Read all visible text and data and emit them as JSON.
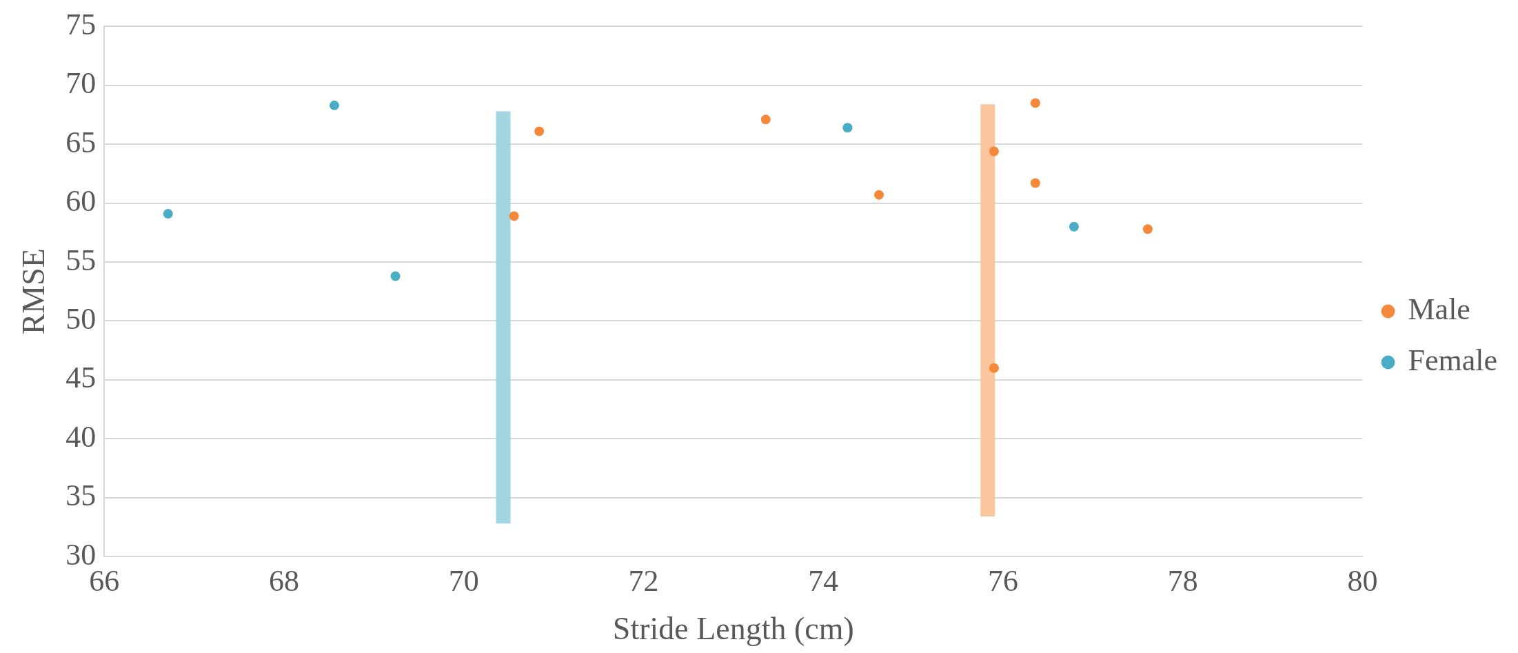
{
  "chart_data": {
    "type": "scatter",
    "xlabel": "Stride Length (cm)",
    "ylabel": "RMSE",
    "xlim": [
      66,
      80
    ],
    "xticks": [
      66,
      68,
      70,
      72,
      74,
      76,
      78,
      80
    ],
    "ylim": [
      30,
      75
    ],
    "yticks": [
      30,
      35,
      40,
      45,
      50,
      55,
      60,
      65,
      70,
      75
    ],
    "grid": "y",
    "legend": "right",
    "series": [
      {
        "name": "Male",
        "marker": "circle",
        "color": "#f4893a",
        "x": [
          70.84,
          70.56,
          73.36,
          74.62,
          75.9,
          76.36,
          76.36,
          75.9,
          77.61
        ],
        "values": [
          66.1,
          58.9,
          67.1,
          60.7,
          64.4,
          68.5,
          61.7,
          46.0,
          57.8
        ]
      },
      {
        "name": "Female",
        "marker": "circle",
        "color": "#4bacc6",
        "x": [
          66.71,
          68.56,
          69.24,
          74.27,
          76.79
        ],
        "values": [
          59.1,
          68.3,
          53.8,
          66.4,
          58.0
        ]
      },
      {
        "type": "line",
        "marker": "none",
        "color": "#a3d6e3",
        "x": [
          70.44,
          70.44
        ],
        "values": [
          32.8,
          67.8
        ]
      },
      {
        "type": "line",
        "marker": "none",
        "color": "#fbc59e",
        "x": [
          75.83,
          75.83
        ],
        "values": [
          33.4,
          68.4
        ]
      }
    ]
  }
}
